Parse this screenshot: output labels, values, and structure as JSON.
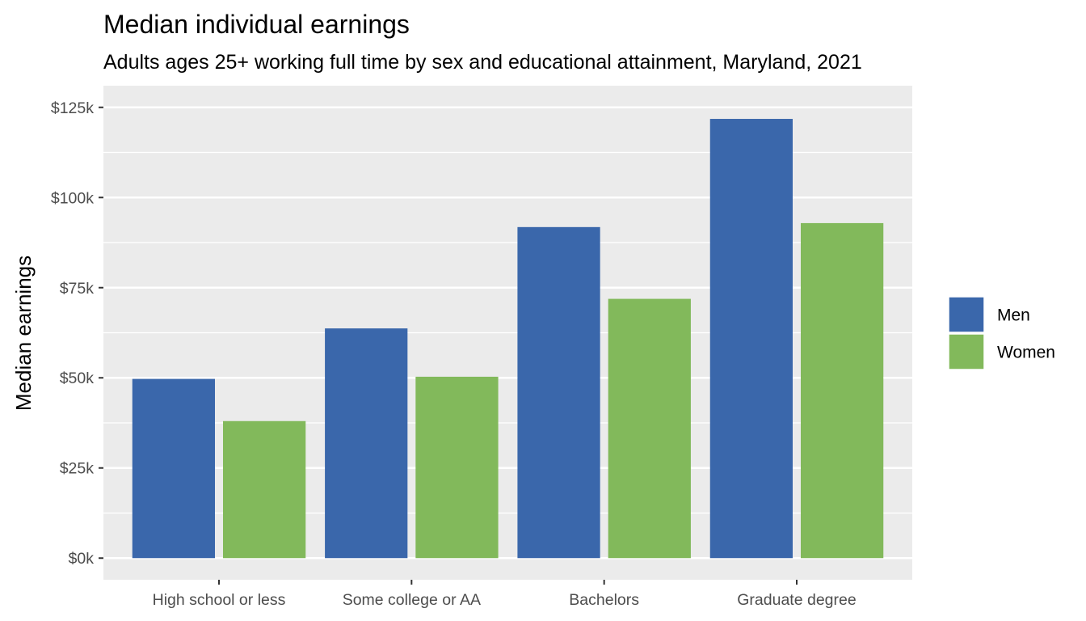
{
  "chart_data": {
    "type": "bar",
    "title": "Median individual earnings",
    "subtitle": "Adults ages 25+ working full time by sex and educational attainment, Maryland, 2021",
    "xlabel": "",
    "ylabel": "Median earnings",
    "categories": [
      "High school or less",
      "Some college or AA",
      "Bachelors",
      "Graduate degree"
    ],
    "series": [
      {
        "name": "Men",
        "color": "#3a67ab",
        "values": [
          49700,
          63700,
          91800,
          121800
        ]
      },
      {
        "name": "Women",
        "color": "#82b95b",
        "values": [
          38000,
          50300,
          71900,
          92900
        ]
      }
    ],
    "ylim": [
      -6000,
      131000
    ],
    "yticks": [
      0,
      25000,
      50000,
      75000,
      100000,
      125000
    ],
    "ytick_labels": [
      "$0k",
      "$25k",
      "$50k",
      "$75k",
      "$100k",
      "$125k"
    ],
    "grid": true,
    "legend": "right",
    "panel_background": "#ebebeb",
    "grid_color": "#ffffff"
  }
}
